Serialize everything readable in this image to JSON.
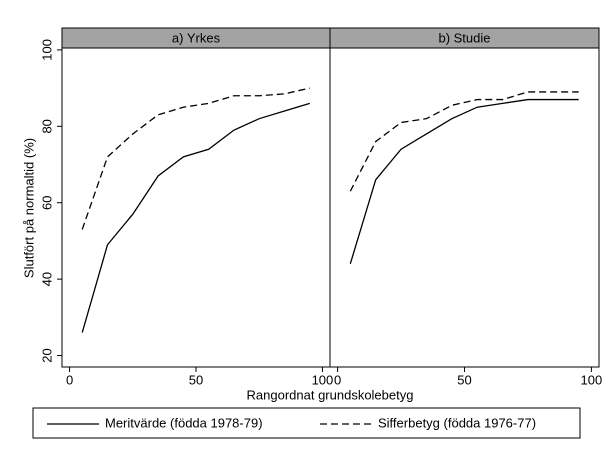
{
  "chart_data": [
    {
      "type": "line",
      "title": "a) Yrkes",
      "xlabel": "Rangordnat grundskolebetyg",
      "ylabel": "Slutfört på normaltid (%)",
      "x": [
        5,
        15,
        25,
        35,
        45,
        55,
        65,
        75,
        85,
        95
      ],
      "xlim": [
        -3,
        103
      ],
      "xticks": [
        0,
        50,
        100
      ],
      "ylim": [
        17,
        100.5
      ],
      "yticks": [
        20,
        40,
        60,
        80,
        100
      ],
      "series": [
        {
          "name": "Meritvärde (födda 1978-79)",
          "color": "#000000",
          "linestyle": "solid",
          "values": [
            26,
            49,
            57,
            67,
            72,
            74,
            79,
            82,
            84,
            86
          ]
        },
        {
          "name": "Sifferbetyg (födda 1976-77)",
          "color": "#000000",
          "linestyle": "dashed",
          "values": [
            53,
            72,
            78,
            83,
            85,
            86,
            88,
            88,
            88.5,
            90
          ]
        }
      ]
    },
    {
      "type": "line",
      "title": "b) Studie",
      "x": [
        5,
        15,
        25,
        35,
        45,
        55,
        65,
        75,
        85,
        95
      ],
      "xlim": [
        -3,
        103
      ],
      "xticks": [
        0,
        50,
        100
      ],
      "ylim": [
        17,
        100.5
      ],
      "series": [
        {
          "color": "#000000",
          "linestyle": "solid",
          "values": [
            44,
            66,
            74,
            78,
            82,
            85,
            86,
            87,
            87,
            87
          ]
        },
        {
          "color": "#000000",
          "linestyle": "dashed",
          "values": [
            63,
            76,
            81,
            82,
            85.5,
            87,
            87,
            89,
            89,
            89
          ]
        }
      ]
    }
  ]
}
